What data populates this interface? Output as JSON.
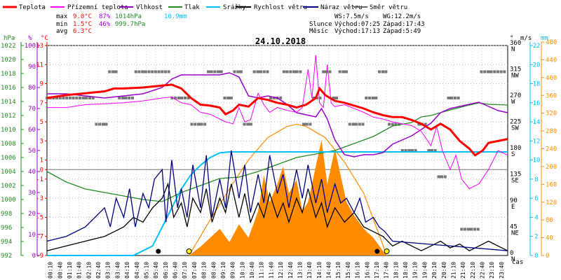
{
  "chart_data": {
    "type": "line",
    "title": "24.10.2018",
    "legend": [
      {
        "label": "Teplota",
        "color": "#ff0000"
      },
      {
        "label": "Přízemní teplota",
        "color": "#ff00ff"
      },
      {
        "label": "Vlhkost",
        "color": "#9900cc"
      },
      {
        "label": "Tlak",
        "color": "#228b22"
      },
      {
        "label": "Srážky",
        "color": "#00bfff"
      },
      {
        "label": "Rychlost větru",
        "color": "#000000"
      },
      {
        "label": "Náraz větru",
        "color": "#000080"
      },
      {
        "label": "Směr větru",
        "color": "#666666"
      }
    ],
    "stats": {
      "max_label": "max",
      "max_temp": "9.0°C",
      "max_hum": "87%",
      "max_press": "1014hPa",
      "rain": "10.9mm",
      "min_label": "min",
      "min_temp": "1.5°C",
      "min_hum": "46%",
      "min_press": "999.7hPa",
      "avg_label": "avg",
      "avg_temp": "6.3°C",
      "ws": "WS:7.5m/s",
      "wg": "WG:12.2m/s",
      "sun_label": "Slunce",
      "sun_rise": "Východ:07:25",
      "sun_set": "Západ:17:43",
      "moon_label": "Měsíc",
      "moon_rise": "Východ:17:13",
      "moon_set": "Západ:5:49"
    },
    "axis_units": {
      "hpa": "hPa",
      "pct": "%",
      "degc": "°C",
      "deg": "°",
      "ms": "m/s",
      "mm": "mm",
      "time": "čas"
    },
    "x_ticks": [
      "00:10",
      "00:40",
      "01:10",
      "01:40",
      "02:10",
      "02:40",
      "03:10",
      "03:40",
      "04:10",
      "04:40",
      "05:10",
      "05:40",
      "06:10",
      "06:40",
      "07:10",
      "07:40",
      "08:10",
      "08:40",
      "09:10",
      "09:40",
      "10:10",
      "10:40",
      "11:10",
      "11:40",
      "12:10",
      "12:40",
      "13:10",
      "13:40",
      "14:10",
      "14:40",
      "15:10",
      "15:40",
      "16:10",
      "16:40",
      "17:10",
      "17:40",
      "18:10",
      "18:40",
      "19:10",
      "19:40",
      "20:10",
      "20:40",
      "21:10",
      "21:40",
      "22:10",
      "22:40",
      "23:10",
      "23:40"
    ],
    "y_pressure_ticks": [
      "1022",
      "1020",
      "1018",
      "1016",
      "1014",
      "1012",
      "1010",
      "1008",
      "1006",
      "1004",
      "1002",
      "1000",
      "998",
      "996",
      "994",
      "992"
    ],
    "y_humidity_ticks": [
      "100",
      "90",
      "80",
      "70",
      "60",
      "50",
      "40",
      "30",
      "20",
      "10",
      "0"
    ],
    "y_temp_ticks": [
      "13",
      "11",
      "9",
      "7",
      "5",
      "3",
      "1",
      "0",
      "-1",
      "-3",
      "-5",
      "-7",
      "-9"
    ],
    "y_dir_ticks": [
      {
        "v": "360",
        "s": "N"
      },
      {
        "v": "315",
        "s": "NW"
      },
      {
        "v": "270",
        "s": "W"
      },
      {
        "v": "225",
        "s": "SW"
      },
      {
        "v": "180",
        "s": "S"
      },
      {
        "v": "135",
        "s": "SE"
      },
      {
        "v": "90",
        "s": "E"
      },
      {
        "v": "45",
        "s": "NE"
      },
      {
        "v": "0",
        "s": "N"
      }
    ],
    "y_wind_ticks": [
      "22",
      "20",
      "18",
      "16",
      "14",
      "12",
      "10",
      "8",
      "6",
      "4",
      "2",
      "0"
    ],
    "y_rain_ticks": [
      "480",
      "440",
      "400",
      "360",
      "320",
      "280",
      "240",
      "200",
      "160",
      "120",
      "80",
      "40",
      "0"
    ],
    "temperature": [
      [
        0,
        7.5
      ],
      [
        1,
        7.8
      ],
      [
        2,
        8.0
      ],
      [
        3,
        8.2
      ],
      [
        3.5,
        8.5
      ],
      [
        4,
        8.5
      ],
      [
        5,
        8.6
      ],
      [
        6,
        8.8
      ],
      [
        6.5,
        8.9
      ],
      [
        7,
        8.5
      ],
      [
        7.5,
        7.5
      ],
      [
        8,
        6.8
      ],
      [
        8.5,
        6.7
      ],
      [
        9,
        6.5
      ],
      [
        9.3,
        5.8
      ],
      [
        9.7,
        6.2
      ],
      [
        10,
        6.8
      ],
      [
        10.5,
        6.6
      ],
      [
        11,
        7.5
      ],
      [
        11.5,
        7.3
      ],
      [
        12,
        7.0
      ],
      [
        12.5,
        6.8
      ],
      [
        13,
        6.5
      ],
      [
        13.5,
        6.8
      ],
      [
        14,
        7.5
      ],
      [
        14.2,
        8.5
      ],
      [
        14.5,
        7.8
      ],
      [
        15,
        7.2
      ],
      [
        15.5,
        7.0
      ],
      [
        16,
        6.7
      ],
      [
        16.5,
        6.4
      ],
      [
        17,
        6.0
      ],
      [
        17.5,
        5.7
      ],
      [
        18,
        5.5
      ],
      [
        18.5,
        5.5
      ],
      [
        19,
        5.2
      ],
      [
        19.5,
        4.8
      ],
      [
        20,
        4.2
      ],
      [
        20.5,
        4.8
      ],
      [
        21,
        4.2
      ],
      [
        21.5,
        3.0
      ],
      [
        22,
        2.2
      ],
      [
        22.3,
        1.5
      ],
      [
        22.7,
        2.0
      ],
      [
        23,
        2.8
      ],
      [
        23.5,
        3.0
      ],
      [
        24,
        3.2
      ]
    ],
    "ground_temperature": [
      [
        0,
        6.5
      ],
      [
        1,
        6.5
      ],
      [
        2,
        6.8
      ],
      [
        3,
        6.9
      ],
      [
        4,
        7.0
      ],
      [
        5,
        7.2
      ],
      [
        6,
        7.5
      ],
      [
        6.5,
        7.6
      ],
      [
        7,
        7.0
      ],
      [
        7.5,
        6.8
      ],
      [
        8,
        6.0
      ],
      [
        8.5,
        5.8
      ],
      [
        9,
        5.3
      ],
      [
        9.3,
        5.0
      ],
      [
        9.7,
        4.8
      ],
      [
        10,
        6.5
      ],
      [
        10.3,
        5.0
      ],
      [
        10.6,
        5.2
      ],
      [
        11,
        8.0
      ],
      [
        11.3,
        6.8
      ],
      [
        11.6,
        6.0
      ],
      [
        12,
        6.5
      ],
      [
        12.5,
        6.2
      ],
      [
        13,
        6.0
      ],
      [
        13.3,
        6.5
      ],
      [
        13.6,
        10.5
      ],
      [
        13.8,
        7.5
      ],
      [
        14.0,
        12.0
      ],
      [
        14.2,
        7.0
      ],
      [
        14.4,
        6.5
      ],
      [
        14.6,
        11.0
      ],
      [
        14.8,
        7.0
      ],
      [
        15,
        6.6
      ],
      [
        15.5,
        6.8
      ],
      [
        16,
        6.4
      ],
      [
        16.5,
        6.0
      ],
      [
        17,
        5.5
      ],
      [
        17.5,
        5.3
      ],
      [
        18,
        5.0
      ],
      [
        18.5,
        4.8
      ],
      [
        19,
        4.6
      ],
      [
        19.5,
        4.0
      ],
      [
        20,
        2.5
      ],
      [
        20.3,
        4.5
      ],
      [
        20.6,
        2.0
      ],
      [
        21,
        0.0
      ],
      [
        21.3,
        1.5
      ],
      [
        21.6,
        -1.0
      ],
      [
        22,
        -2.0
      ],
      [
        22.5,
        -1.5
      ],
      [
        23,
        0.0
      ],
      [
        23.5,
        2.0
      ],
      [
        24,
        1.5
      ]
    ],
    "humidity": [
      [
        0,
        77
      ],
      [
        1,
        77
      ],
      [
        2,
        76
      ],
      [
        3,
        75
      ],
      [
        4,
        76
      ],
      [
        5,
        77
      ],
      [
        6,
        80
      ],
      [
        6.5,
        84
      ],
      [
        7,
        86
      ],
      [
        8,
        86
      ],
      [
        9,
        86
      ],
      [
        9.5,
        87
      ],
      [
        10,
        85
      ],
      [
        10.5,
        76
      ],
      [
        11,
        75
      ],
      [
        11.5,
        76
      ],
      [
        12,
        75
      ],
      [
        12.5,
        72
      ],
      [
        13,
        68
      ],
      [
        13.5,
        67
      ],
      [
        14,
        66
      ],
      [
        14.3,
        70
      ],
      [
        14.6,
        65
      ],
      [
        15,
        55
      ],
      [
        15.5,
        48
      ],
      [
        16,
        47
      ],
      [
        16.5,
        48
      ],
      [
        17,
        48
      ],
      [
        17.5,
        49
      ],
      [
        18,
        53
      ],
      [
        18.5,
        55
      ],
      [
        19,
        57
      ],
      [
        19.5,
        60
      ],
      [
        20,
        63
      ],
      [
        20.5,
        68
      ],
      [
        21,
        70
      ],
      [
        22,
        72
      ],
      [
        22.5,
        73
      ],
      [
        23,
        71
      ],
      [
        23.5,
        69
      ],
      [
        24,
        68
      ]
    ],
    "pressure": [
      [
        0,
        1004
      ],
      [
        1,
        1002.5
      ],
      [
        2,
        1001.5
      ],
      [
        3,
        1001
      ],
      [
        4,
        1000.5
      ],
      [
        5,
        1000
      ],
      [
        6,
        999.7
      ],
      [
        7,
        1001
      ],
      [
        8,
        1002
      ],
      [
        9,
        1003
      ],
      [
        10,
        1003.2
      ],
      [
        11,
        1004
      ],
      [
        12,
        1005
      ],
      [
        13,
        1006
      ],
      [
        14,
        1006.5
      ],
      [
        15,
        1007
      ],
      [
        16,
        1008
      ],
      [
        17,
        1009
      ],
      [
        18,
        1010.5
      ],
      [
        19,
        1011
      ],
      [
        19.5,
        1011.8
      ],
      [
        20,
        1012
      ],
      [
        21,
        1012.8
      ],
      [
        22,
        1013.5
      ],
      [
        22.5,
        1013.8
      ],
      [
        23,
        1013.6
      ],
      [
        24,
        1013.5
      ]
    ],
    "rain_total": [
      [
        0,
        0.0
      ],
      [
        4.5,
        0.0
      ],
      [
        5.5,
        1.0
      ],
      [
        6.0,
        3.0
      ],
      [
        6.5,
        5.0
      ],
      [
        7.0,
        7.0
      ],
      [
        7.5,
        8.5
      ],
      [
        8.0,
        9.5
      ],
      [
        8.5,
        10.3
      ],
      [
        9.0,
        10.8
      ],
      [
        9.5,
        10.9
      ],
      [
        24,
        10.9
      ]
    ],
    "wind_speed": [
      [
        0,
        0.5
      ],
      [
        1,
        1.0
      ],
      [
        2,
        1.5
      ],
      [
        3,
        2.0
      ],
      [
        3.5,
        2.5
      ],
      [
        4,
        3.0
      ],
      [
        4.5,
        4.0
      ],
      [
        5,
        3.5
      ],
      [
        5.5,
        5.0
      ],
      [
        6,
        6.0
      ],
      [
        6.3,
        7.5
      ],
      [
        6.6,
        4.0
      ],
      [
        7,
        5.5
      ],
      [
        7.3,
        3.0
      ],
      [
        7.6,
        6.0
      ],
      [
        8,
        4.5
      ],
      [
        8.3,
        7.0
      ],
      [
        8.6,
        3.5
      ],
      [
        9,
        6.0
      ],
      [
        9.3,
        4.5
      ],
      [
        9.6,
        7.5
      ],
      [
        10,
        4.0
      ],
      [
        10.3,
        6.5
      ],
      [
        10.6,
        3.5
      ],
      [
        11,
        5.5
      ],
      [
        11.3,
        4.0
      ],
      [
        11.6,
        6.5
      ],
      [
        12,
        4.0
      ],
      [
        12.3,
        5.5
      ],
      [
        12.6,
        3.5
      ],
      [
        13,
        6.0
      ],
      [
        13.3,
        4.5
      ],
      [
        13.6,
        7.0
      ],
      [
        14,
        4.0
      ],
      [
        14.3,
        5.5
      ],
      [
        14.6,
        3.0
      ],
      [
        15,
        5.0
      ],
      [
        15.5,
        3.5
      ],
      [
        16,
        4.5
      ],
      [
        16.5,
        3.0
      ],
      [
        17,
        2.5
      ],
      [
        17.5,
        2.0
      ],
      [
        18,
        1.0
      ],
      [
        18.5,
        1.5
      ],
      [
        19,
        1.0
      ],
      [
        19.5,
        0.5
      ],
      [
        20,
        1.0
      ],
      [
        20.5,
        1.5
      ],
      [
        21,
        0.8
      ],
      [
        21.5,
        1.2
      ],
      [
        22,
        0.5
      ],
      [
        22.5,
        1.0
      ],
      [
        23,
        1.5
      ],
      [
        23.5,
        1.0
      ],
      [
        24,
        0.5
      ]
    ],
    "wind_gust": [
      [
        0,
        1.5
      ],
      [
        1,
        2.0
      ],
      [
        2,
        3.0
      ],
      [
        3,
        5.0
      ],
      [
        3.3,
        3.0
      ],
      [
        3.6,
        6.0
      ],
      [
        4,
        4.0
      ],
      [
        4.3,
        7.0
      ],
      [
        4.6,
        3.0
      ],
      [
        5,
        6.5
      ],
      [
        5.3,
        5.0
      ],
      [
        5.6,
        8.0
      ],
      [
        6,
        9.0
      ],
      [
        6.2,
        3.5
      ],
      [
        6.5,
        10.0
      ],
      [
        6.8,
        5.0
      ],
      [
        7,
        7.0
      ],
      [
        7.3,
        4.0
      ],
      [
        7.6,
        9.5
      ],
      [
        8,
        5.0
      ],
      [
        8.3,
        10.5
      ],
      [
        8.6,
        4.0
      ],
      [
        9,
        8.0
      ],
      [
        9.3,
        5.0
      ],
      [
        9.6,
        11.0
      ],
      [
        10,
        6.0
      ],
      [
        10.3,
        9.5
      ],
      [
        10.6,
        4.5
      ],
      [
        11,
        8.5
      ],
      [
        11.3,
        5.5
      ],
      [
        11.6,
        10.5
      ],
      [
        12,
        6.5
      ],
      [
        12.3,
        8.5
      ],
      [
        12.6,
        5.0
      ],
      [
        13,
        9.0
      ],
      [
        13.3,
        6.0
      ],
      [
        13.6,
        9.5
      ],
      [
        14,
        5.5
      ],
      [
        14.3,
        8.0
      ],
      [
        14.6,
        4.5
      ],
      [
        15,
        7.5
      ],
      [
        15.3,
        5.5
      ],
      [
        15.6,
        6.0
      ],
      [
        16,
        4.5
      ],
      [
        16.3,
        6.0
      ],
      [
        16.6,
        3.5
      ],
      [
        17,
        4.0
      ],
      [
        17.3,
        3.0
      ],
      [
        17.6,
        2.5
      ],
      [
        18,
        1.5
      ],
      [
        24,
        0.5
      ]
    ],
    "wind_direction": [
      [
        2,
        270
      ],
      [
        3,
        225
      ],
      [
        3.5,
        315
      ],
      [
        4,
        270
      ],
      [
        5,
        315
      ],
      [
        6,
        315
      ],
      [
        7,
        270
      ],
      [
        8,
        225
      ],
      [
        8.5,
        315
      ],
      [
        9,
        315
      ],
      [
        9.5,
        270
      ],
      [
        10,
        315
      ],
      [
        10.5,
        225
      ],
      [
        11,
        315
      ],
      [
        12,
        270
      ],
      [
        12.5,
        315
      ],
      [
        13,
        315
      ],
      [
        13.5,
        225
      ],
      [
        14,
        270
      ],
      [
        14.5,
        315
      ],
      [
        15,
        270
      ],
      [
        15.5,
        315
      ],
      [
        16,
        225
      ],
      [
        17,
        270
      ],
      [
        17.5,
        315
      ],
      [
        18,
        225
      ],
      [
        19,
        180
      ],
      [
        19.5,
        225
      ],
      [
        20,
        180
      ],
      [
        20.5,
        135
      ],
      [
        21,
        270
      ],
      [
        22,
        45
      ],
      [
        23,
        315
      ]
    ],
    "solar_radiation": [
      [
        7.4,
        0
      ],
      [
        8,
        20
      ],
      [
        8.5,
        40
      ],
      [
        9,
        60
      ],
      [
        9.5,
        30
      ],
      [
        10,
        70
      ],
      [
        10.5,
        40
      ],
      [
        11,
        100
      ],
      [
        11.3,
        180
      ],
      [
        11.6,
        120
      ],
      [
        12,
        160
      ],
      [
        12.3,
        200
      ],
      [
        12.6,
        140
      ],
      [
        13,
        170
      ],
      [
        13.3,
        100
      ],
      [
        13.6,
        120
      ],
      [
        14,
        200
      ],
      [
        14.3,
        260
      ],
      [
        14.6,
        160
      ],
      [
        15,
        240
      ],
      [
        15.3,
        180
      ],
      [
        15.6,
        120
      ],
      [
        16,
        90
      ],
      [
        16.5,
        60
      ],
      [
        17,
        40
      ],
      [
        17.5,
        10
      ],
      [
        17.7,
        0
      ]
    ],
    "solar_max": [
      [
        7.4,
        0
      ],
      [
        8.5,
        80
      ],
      [
        9.5,
        150
      ],
      [
        10.5,
        215
      ],
      [
        11.5,
        265
      ],
      [
        12.5,
        290
      ],
      [
        13,
        295
      ],
      [
        13.5,
        290
      ],
      [
        14.5,
        265
      ],
      [
        15.5,
        210
      ],
      [
        16.5,
        140
      ],
      [
        17.7,
        0
      ]
    ],
    "markers": [
      {
        "type": "moonset",
        "t": 5.8
      },
      {
        "type": "sunrise",
        "t": 7.4
      },
      {
        "type": "moonrise",
        "t": 17.2
      },
      {
        "type": "sunset",
        "t": 17.7
      }
    ]
  }
}
